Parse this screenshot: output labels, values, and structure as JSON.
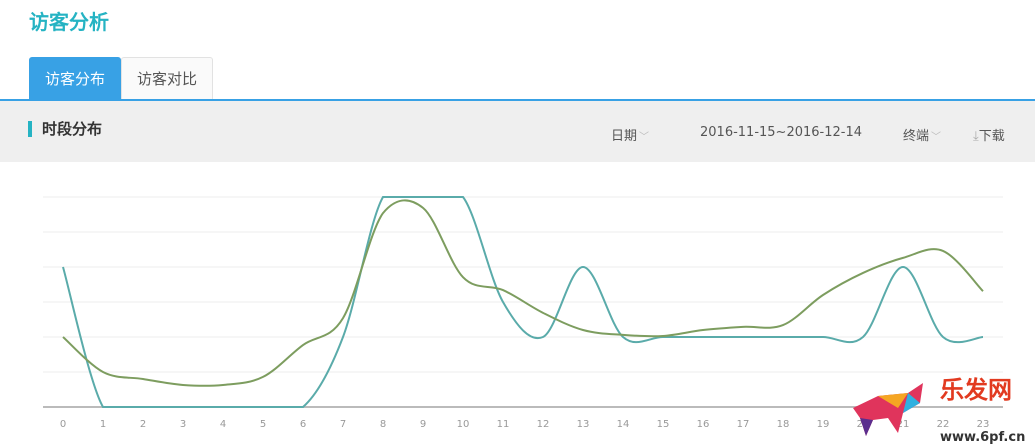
{
  "page_title": "访客分析",
  "tabs": [
    {
      "label": "访客分布",
      "active": true
    },
    {
      "label": "访客对比",
      "active": false
    }
  ],
  "section": {
    "title": "时段分布",
    "date_label": "日期",
    "date_range": "2016-11-15~2016-12-14",
    "terminal_label": "终端",
    "download_label": "下载"
  },
  "colors": {
    "accent": "#38a1e5",
    "title": "#25b3c3",
    "series1": "#5aabaa",
    "series2": "#7d9d5f"
  },
  "watermark": {
    "text": "乐发网",
    "url": "www.6pf.cn"
  },
  "chart_data": {
    "type": "line",
    "smooth": true,
    "grid": true,
    "categories": [
      "0",
      "1",
      "2",
      "3",
      "4",
      "5",
      "6",
      "7",
      "8",
      "9",
      "10",
      "11",
      "12",
      "13",
      "14",
      "15",
      "16",
      "17",
      "18",
      "19",
      "20",
      "21",
      "22",
      "23"
    ],
    "ylim": [
      0,
      6
    ],
    "series": [
      {
        "values": [
          4,
          0,
          0,
          0,
          0,
          0,
          0,
          2,
          6,
          6,
          6,
          3,
          2,
          4,
          2,
          2,
          2,
          2,
          2,
          2,
          2,
          4,
          2,
          2
        ]
      },
      {
        "values": [
          2,
          1,
          0.8,
          0.63,
          0.63,
          0.86,
          1.77,
          2.54,
          5.54,
          5.69,
          3.71,
          3.34,
          2.69,
          2.2,
          2.06,
          2.03,
          2.2,
          2.29,
          2.34,
          3.2,
          3.83,
          4.26,
          4.46,
          3.31
        ]
      }
    ]
  }
}
